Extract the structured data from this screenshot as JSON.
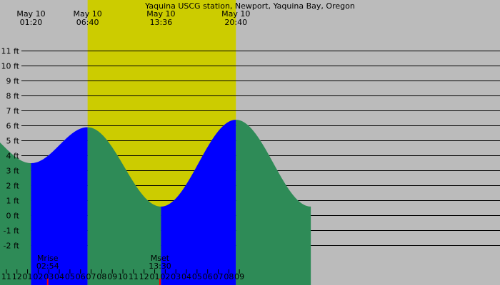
{
  "chart_data": {
    "type": "area",
    "title": "Yaquina USCG station, Newport, Yaquina Bay, Oregon",
    "y_unit": "ft",
    "ylim": [
      -3.5,
      12.5
    ],
    "y_ticks": [
      -2,
      -1,
      0,
      1,
      2,
      3,
      4,
      5,
      6,
      7,
      8,
      9,
      10,
      11
    ],
    "x_hour_range": [
      -13.6,
      33.6
    ],
    "hour_ticks": [
      {
        "hour": -13,
        "label": "11"
      },
      {
        "hour": -12,
        "label": "12"
      },
      {
        "hour": -11,
        "label": "01"
      },
      {
        "hour": -10,
        "label": "02"
      },
      {
        "hour": -9,
        "label": "03"
      },
      {
        "hour": -8,
        "label": "04"
      },
      {
        "hour": -7,
        "label": "05"
      },
      {
        "hour": -6,
        "label": "06"
      },
      {
        "hour": -5,
        "label": "07"
      },
      {
        "hour": -4,
        "label": "08"
      },
      {
        "hour": -3,
        "label": "09"
      },
      {
        "hour": -2,
        "label": "10"
      },
      {
        "hour": -1,
        "label": "11"
      },
      {
        "hour": 0,
        "label": "12"
      },
      {
        "hour": 1,
        "label": "01"
      },
      {
        "hour": 2,
        "label": "02"
      },
      {
        "hour": 3,
        "label": "03"
      },
      {
        "hour": 4,
        "label": "04"
      },
      {
        "hour": 5,
        "label": "05"
      },
      {
        "hour": 6,
        "label": "06"
      },
      {
        "hour": 7,
        "label": "07"
      },
      {
        "hour": 8,
        "label": "08"
      },
      {
        "hour": 9,
        "label": "09"
      }
    ],
    "daylight": {
      "sunrise_hour": -5.33,
      "sunset_hour": 8.67
    },
    "tide_events": [
      {
        "date": "May 10",
        "time": "01:20",
        "hour": -10.67,
        "height_ft": 3.5,
        "type": "low"
      },
      {
        "date": "May 10",
        "time": "06:40",
        "hour": -5.33,
        "height_ft": 5.9,
        "type": "high"
      },
      {
        "date": "May 10",
        "time": "13:36",
        "hour": 1.6,
        "height_ft": 0.6,
        "type": "low"
      },
      {
        "date": "May 10",
        "time": "20:40",
        "hour": 8.67,
        "height_ft": 6.4,
        "type": "high"
      }
    ],
    "moon_events": [
      {
        "label": "Mrise",
        "time": "02:54",
        "hour": -9.1
      },
      {
        "label": "Mset",
        "time": "13:30",
        "hour": 1.5
      }
    ],
    "colors": {
      "night": "#bbbbbb",
      "day": "#cccc00",
      "rising": "#0000ff",
      "falling": "#2e8b57",
      "grid": "#000000",
      "moon_tick": "#ff0000"
    }
  }
}
